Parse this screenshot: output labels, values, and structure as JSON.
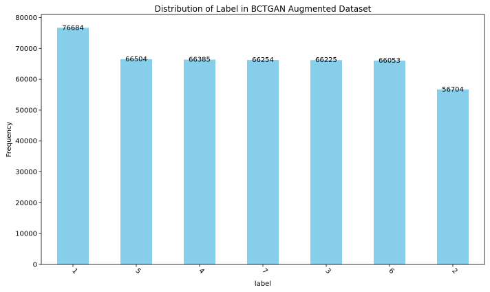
{
  "chart_data": {
    "type": "bar",
    "title": "Distribution of Label in BCTGAN Augmented Dataset",
    "xlabel": "label",
    "ylabel": "Frequency",
    "categories": [
      "1",
      "5",
      "4",
      "7",
      "3",
      "6",
      "2"
    ],
    "values": [
      76684,
      66504,
      66385,
      66254,
      66225,
      66053,
      56704
    ],
    "data_labels": [
      "76684",
      "66504",
      "66385",
      "66254",
      "66225",
      "66053",
      "56704"
    ],
    "ylim": [
      0,
      81000
    ],
    "yticks": [
      0,
      10000,
      20000,
      30000,
      40000,
      50000,
      60000,
      70000,
      80000
    ],
    "ytick_labels": [
      "0",
      "10000",
      "20000",
      "30000",
      "40000",
      "50000",
      "60000",
      "70000",
      "80000"
    ],
    "bar_color": "#87CEEB",
    "xtick_rotation": 45,
    "grid": false,
    "legend": "none"
  }
}
